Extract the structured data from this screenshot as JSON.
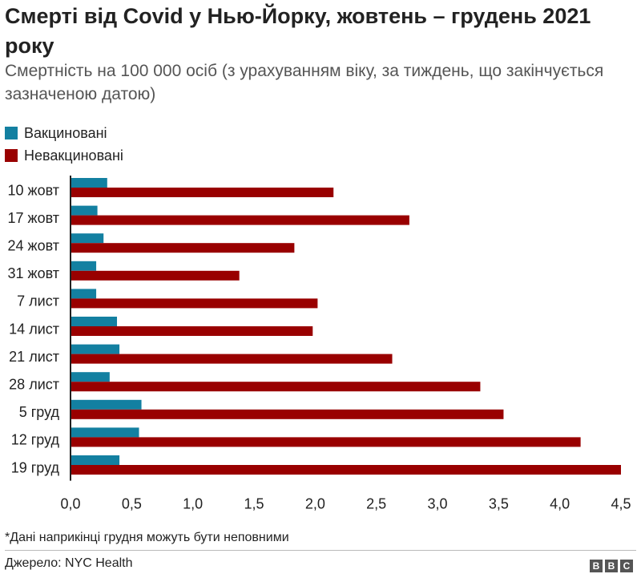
{
  "title": "Смерті від Covid у Нью-Йорку, жовтень – грудень 2021 року",
  "subtitle": "Смертність на 100 000 осіб (з урахуванням віку, за тиждень, що закінчується зазначеною датою)",
  "legend": [
    {
      "label": "Вакциновані",
      "color": "#1380A1"
    },
    {
      "label": "Невакциновані",
      "color": "#990000"
    }
  ],
  "chart_data": {
    "type": "bar",
    "orientation": "horizontal",
    "title": "Смерті від Covid у Нью-Йорку, жовтень – грудень 2021 року",
    "xlabel": "",
    "ylabel": "",
    "xlim": [
      0,
      4.5
    ],
    "xticks": [
      "0,0",
      "0,5",
      "1,0",
      "1,5",
      "2,0",
      "2,5",
      "3,0",
      "3,5",
      "4,0",
      "4,5"
    ],
    "categories": [
      "10 жовт",
      "17 жовт",
      "24 жовт",
      "31 жовт",
      "7 лист",
      "14 лист",
      "21 лист",
      "28 лист",
      "5 груд",
      "12 груд",
      "19 груд"
    ],
    "series": [
      {
        "name": "Вакциновані",
        "color": "#1380A1",
        "values": [
          0.3,
          0.22,
          0.27,
          0.21,
          0.21,
          0.38,
          0.4,
          0.32,
          0.58,
          0.56,
          0.4
        ]
      },
      {
        "name": "Невакциновані",
        "color": "#990000",
        "values": [
          2.15,
          2.77,
          1.83,
          1.38,
          2.02,
          1.98,
          2.63,
          3.35,
          3.54,
          4.17,
          4.5
        ]
      }
    ],
    "legend_position": "top-left"
  },
  "footnote": "*Дані наприкінці грудня можуть бути неповними",
  "source": "Джерело: NYC Health",
  "logo": {
    "letters": [
      "B",
      "B",
      "C"
    ]
  }
}
